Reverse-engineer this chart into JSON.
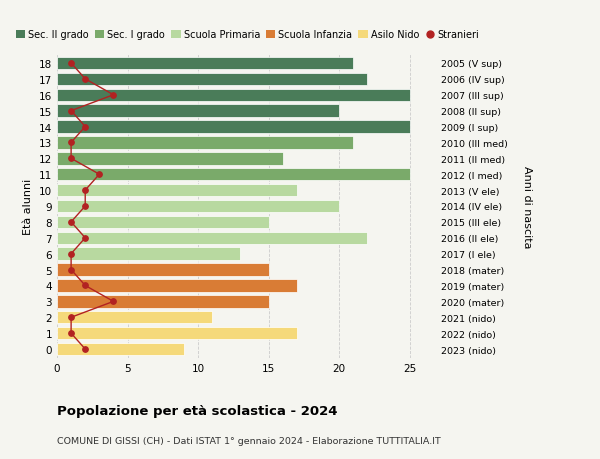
{
  "ages": [
    18,
    17,
    16,
    15,
    14,
    13,
    12,
    11,
    10,
    9,
    8,
    7,
    6,
    5,
    4,
    3,
    2,
    1,
    0
  ],
  "right_labels": [
    "2005 (V sup)",
    "2006 (IV sup)",
    "2007 (III sup)",
    "2008 (II sup)",
    "2009 (I sup)",
    "2010 (III med)",
    "2011 (II med)",
    "2012 (I med)",
    "2013 (V ele)",
    "2014 (IV ele)",
    "2015 (III ele)",
    "2016 (II ele)",
    "2017 (I ele)",
    "2018 (mater)",
    "2019 (mater)",
    "2020 (mater)",
    "2021 (nido)",
    "2022 (nido)",
    "2023 (nido)"
  ],
  "bar_values": [
    21,
    22,
    25,
    20,
    25,
    21,
    16,
    25,
    17,
    20,
    15,
    22,
    13,
    15,
    17,
    15,
    11,
    17,
    9
  ],
  "bar_colors": [
    "#4a7c59",
    "#4a7c59",
    "#4a7c59",
    "#4a7c59",
    "#4a7c59",
    "#7aaa6a",
    "#7aaa6a",
    "#7aaa6a",
    "#b8d9a0",
    "#b8d9a0",
    "#b8d9a0",
    "#b8d9a0",
    "#b8d9a0",
    "#d97c35",
    "#d97c35",
    "#d97c35",
    "#f5d97a",
    "#f5d97a",
    "#f5d97a"
  ],
  "stranieri_values": [
    1,
    2,
    4,
    1,
    2,
    1,
    1,
    3,
    2,
    2,
    1,
    2,
    1,
    1,
    2,
    4,
    1,
    1,
    2
  ],
  "stranieri_color": "#b22222",
  "legend_labels": [
    "Sec. II grado",
    "Sec. I grado",
    "Scuola Primaria",
    "Scuola Infanzia",
    "Asilo Nido",
    "Stranieri"
  ],
  "legend_colors": [
    "#4a7c59",
    "#7aaa6a",
    "#b8d9a0",
    "#d97c35",
    "#f5d97a",
    "#b22222"
  ],
  "ylabel": "Età alunni",
  "right_ylabel": "Anni di nascita",
  "title": "Popolazione per età scolastica - 2024",
  "subtitle": "COMUNE DI GISSI (CH) - Dati ISTAT 1° gennaio 2024 - Elaborazione TUTTITALIA.IT",
  "xlim": [
    0,
    27
  ],
  "background_color": "#f5f5f0",
  "grid_color": "#cccccc"
}
